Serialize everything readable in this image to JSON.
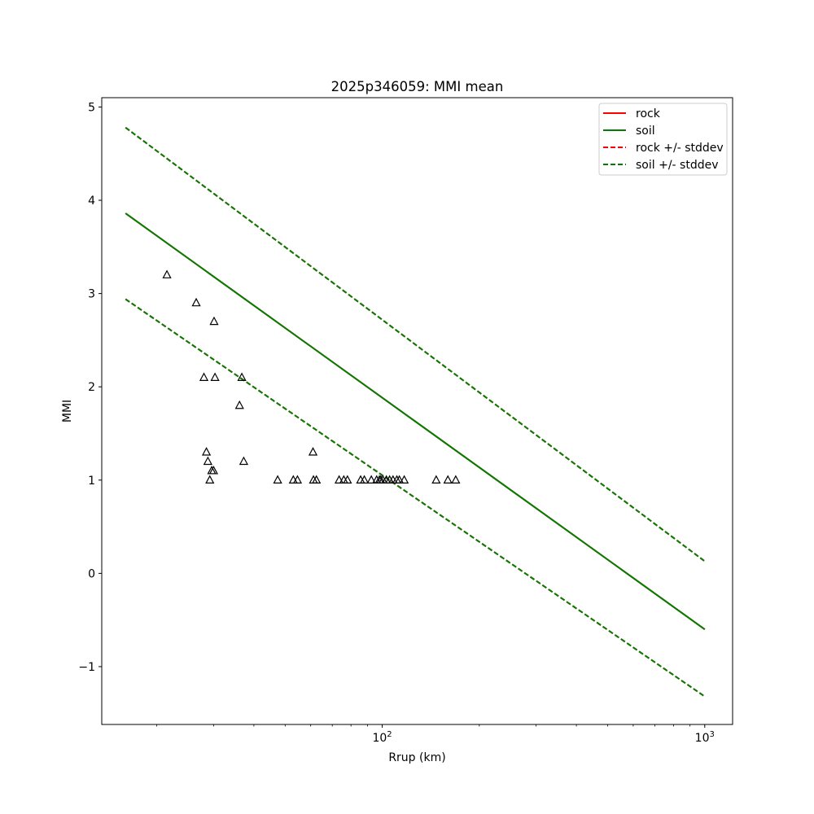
{
  "chart_data": {
    "type": "line",
    "title": "2025p346059: MMI mean",
    "xlabel": "Rrup (km)",
    "ylabel": "MMI",
    "xscale": "log",
    "xlim": [
      13.5,
      1220
    ],
    "ylim": [
      -1.62,
      5.1
    ],
    "x_ticks": [
      {
        "value": 100,
        "base": "10",
        "exp": "2"
      },
      {
        "value": 1000,
        "base": "10",
        "exp": "3"
      }
    ],
    "x_minor_ticks": [
      20,
      30,
      40,
      50,
      60,
      70,
      80,
      90,
      200,
      300,
      400,
      500,
      600,
      700,
      800,
      900
    ],
    "y_ticks": [
      {
        "value": 5,
        "label": "5"
      },
      {
        "value": 4,
        "label": "4"
      },
      {
        "value": 3,
        "label": "3"
      },
      {
        "value": 2,
        "label": "2"
      },
      {
        "value": 1,
        "label": "1"
      },
      {
        "value": 0,
        "label": "0"
      },
      {
        "value": -1,
        "label": "−1"
      }
    ],
    "grid": false,
    "legend_position": "top-right",
    "series": [
      {
        "name": "rock",
        "color": "#ff0000",
        "style": "solid",
        "x": [
          16,
          1000
        ],
        "y": [
          3.86,
          -0.6
        ]
      },
      {
        "name": "soil",
        "color": "#008000",
        "style": "solid",
        "x": [
          16,
          1000
        ],
        "y": [
          3.86,
          -0.6
        ]
      },
      {
        "name": "rock +/- stddev",
        "color": "#ff0000",
        "style": "dashed",
        "x": [
          16,
          1000
        ],
        "y_upper": [
          4.78,
          0.13
        ],
        "y_lower": [
          2.94,
          -1.32
        ]
      },
      {
        "name": "soil +/- stddev",
        "color": "#008000",
        "style": "dashed",
        "x": [
          16,
          1000
        ],
        "y_upper": [
          4.78,
          0.13
        ],
        "y_lower": [
          2.94,
          -1.32
        ]
      }
    ],
    "observations": {
      "marker": "triangle",
      "color": "#000000",
      "x": [
        21.5,
        26.5,
        30.1,
        28.0,
        28.8,
        28.5,
        29.2,
        29.6,
        30.0,
        30.3,
        36.1,
        36.7,
        37.2,
        47.4,
        53.0,
        54.6,
        61.2,
        62.5,
        61.0,
        73.5,
        76.0,
        78.0,
        85.7,
        88.0,
        92.5,
        96.1,
        98.0,
        99.0,
        100.5,
        103.0,
        105.4,
        108.0,
        111.0,
        113.0,
        117.0,
        147.0,
        159.8,
        169.0
      ],
      "y": [
        3.2,
        2.9,
        2.7,
        2.1,
        1.2,
        1.3,
        1.0,
        1.1,
        1.1,
        2.1,
        1.8,
        2.1,
        1.2,
        1.0,
        1.0,
        1.0,
        1.0,
        1.0,
        1.3,
        1.0,
        1.0,
        1.0,
        1.0,
        1.0,
        1.0,
        1.0,
        1.0,
        1.0,
        1.0,
        1.0,
        1.0,
        1.0,
        1.0,
        1.0,
        1.0,
        1.0,
        1.0,
        1.0
      ]
    }
  }
}
